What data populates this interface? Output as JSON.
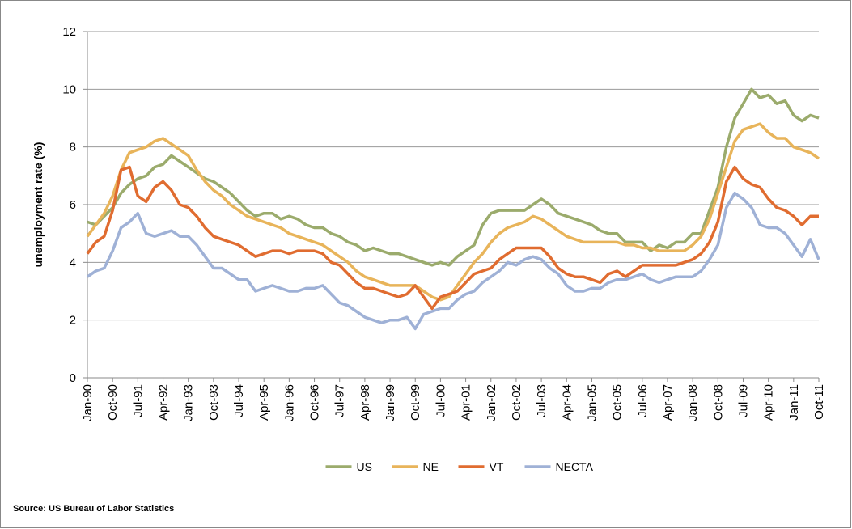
{
  "chart_data": {
    "type": "line",
    "y_label": "unemployment rate (%)",
    "source": "Source: US Bureau of Labor Statistics",
    "ylim": [
      0,
      12
    ],
    "yticks": [
      0,
      2,
      4,
      6,
      8,
      10,
      12
    ],
    "grid": true,
    "legend": "bottom",
    "categories": [
      "Jan-90",
      null,
      null,
      "Oct-90",
      null,
      null,
      "Jul-91",
      null,
      null,
      "Apr-92",
      null,
      null,
      "Jan-93",
      null,
      null,
      "Oct-93",
      null,
      null,
      "Jul-94",
      null,
      null,
      "Apr-95",
      null,
      null,
      "Jan-96",
      null,
      null,
      "Oct-96",
      null,
      null,
      "Jul-97",
      null,
      null,
      "Apr-98",
      null,
      null,
      "Jan-99",
      null,
      null,
      "Oct-99",
      null,
      null,
      "Jul-00",
      null,
      null,
      "Apr-01",
      null,
      null,
      "Jan-02",
      null,
      null,
      "Oct-02",
      null,
      null,
      "Jul-03",
      null,
      null,
      "Apr-04",
      null,
      null,
      "Jan-05",
      null,
      null,
      "Oct-05",
      null,
      null,
      "Jul-06",
      null,
      null,
      "Apr-07",
      null,
      null,
      "Jan-08",
      null,
      null,
      "Oct-08",
      null,
      null,
      "Jul-09",
      null,
      null,
      "Apr-10",
      null,
      null,
      "Jan-11",
      null,
      null,
      "Oct-11"
    ],
    "series": [
      {
        "name": "US",
        "color": "#9bab6c",
        "values": [
          5.4,
          5.3,
          5.6,
          5.9,
          6.4,
          6.7,
          6.9,
          7.0,
          7.3,
          7.4,
          7.7,
          7.5,
          7.3,
          7.1,
          6.9,
          6.8,
          6.6,
          6.4,
          6.1,
          5.8,
          5.6,
          5.7,
          5.7,
          5.5,
          5.6,
          5.5,
          5.3,
          5.2,
          5.2,
          5.0,
          4.9,
          4.7,
          4.6,
          4.4,
          4.5,
          4.4,
          4.3,
          4.3,
          4.2,
          4.1,
          4.0,
          3.9,
          4.0,
          3.9,
          4.2,
          4.4,
          4.6,
          5.3,
          5.7,
          5.8,
          5.8,
          5.8,
          5.8,
          6.0,
          6.2,
          6.0,
          5.7,
          5.6,
          5.5,
          5.4,
          5.3,
          5.1,
          5.0,
          5.0,
          4.7,
          4.7,
          4.7,
          4.4,
          4.6,
          4.5,
          4.7,
          4.7,
          5.0,
          5.0,
          5.8,
          6.6,
          8.0,
          9.0,
          9.5,
          10.0,
          9.7,
          9.8,
          9.5,
          9.6,
          9.1,
          8.9,
          9.1,
          9.0
        ]
      },
      {
        "name": "NE",
        "color": "#e8b45a",
        "values": [
          4.9,
          5.3,
          5.7,
          6.3,
          7.2,
          7.8,
          7.9,
          8.0,
          8.2,
          8.3,
          8.1,
          7.9,
          7.7,
          7.2,
          6.8,
          6.5,
          6.3,
          6.0,
          5.8,
          5.6,
          5.5,
          5.4,
          5.3,
          5.2,
          5.0,
          4.9,
          4.8,
          4.7,
          4.6,
          4.4,
          4.2,
          4.0,
          3.7,
          3.5,
          3.4,
          3.3,
          3.2,
          3.2,
          3.2,
          3.2,
          3.0,
          2.8,
          2.7,
          2.8,
          3.2,
          3.6,
          4.0,
          4.3,
          4.7,
          5.0,
          5.2,
          5.3,
          5.4,
          5.6,
          5.5,
          5.3,
          5.1,
          4.9,
          4.8,
          4.7,
          4.7,
          4.7,
          4.7,
          4.7,
          4.6,
          4.6,
          4.5,
          4.5,
          4.4,
          4.4,
          4.4,
          4.4,
          4.6,
          4.9,
          5.5,
          6.4,
          7.3,
          8.2,
          8.6,
          8.7,
          8.8,
          8.5,
          8.3,
          8.3,
          8.0,
          7.9,
          7.8,
          7.6
        ]
      },
      {
        "name": "VT",
        "color": "#e06c30",
        "values": [
          4.3,
          4.7,
          4.9,
          5.8,
          7.2,
          7.3,
          6.3,
          6.1,
          6.6,
          6.8,
          6.5,
          6.0,
          5.9,
          5.6,
          5.2,
          4.9,
          4.8,
          4.7,
          4.6,
          4.4,
          4.2,
          4.3,
          4.4,
          4.4,
          4.3,
          4.4,
          4.4,
          4.4,
          4.3,
          4.0,
          3.9,
          3.6,
          3.3,
          3.1,
          3.1,
          3.0,
          2.9,
          2.8,
          2.9,
          3.2,
          2.8,
          2.4,
          2.8,
          2.9,
          3.0,
          3.3,
          3.6,
          3.7,
          3.8,
          4.1,
          4.3,
          4.5,
          4.5,
          4.5,
          4.5,
          4.2,
          3.8,
          3.6,
          3.5,
          3.5,
          3.4,
          3.3,
          3.6,
          3.7,
          3.5,
          3.7,
          3.9,
          3.9,
          3.9,
          3.9,
          3.9,
          4.0,
          4.1,
          4.3,
          4.7,
          5.4,
          6.8,
          7.3,
          6.9,
          6.7,
          6.6,
          6.2,
          5.9,
          5.8,
          5.6,
          5.3,
          5.6,
          5.6
        ]
      },
      {
        "name": "NECTA",
        "color": "#9fb1d6",
        "values": [
          3.5,
          3.7,
          3.8,
          4.4,
          5.2,
          5.4,
          5.7,
          5.0,
          4.9,
          5.0,
          5.1,
          4.9,
          4.9,
          4.6,
          4.2,
          3.8,
          3.8,
          3.6,
          3.4,
          3.4,
          3.0,
          3.1,
          3.2,
          3.1,
          3.0,
          3.0,
          3.1,
          3.1,
          3.2,
          2.9,
          2.6,
          2.5,
          2.3,
          2.1,
          2.0,
          1.9,
          2.0,
          2.0,
          2.1,
          1.7,
          2.2,
          2.3,
          2.4,
          2.4,
          2.7,
          2.9,
          3.0,
          3.3,
          3.5,
          3.7,
          4.0,
          3.9,
          4.1,
          4.2,
          4.1,
          3.8,
          3.6,
          3.2,
          3.0,
          3.0,
          3.1,
          3.1,
          3.3,
          3.4,
          3.4,
          3.5,
          3.6,
          3.4,
          3.3,
          3.4,
          3.5,
          3.5,
          3.5,
          3.7,
          4.1,
          4.6,
          5.9,
          6.4,
          6.2,
          5.9,
          5.3,
          5.2,
          5.2,
          5.0,
          4.6,
          4.2,
          4.8,
          4.1
        ]
      }
    ]
  }
}
